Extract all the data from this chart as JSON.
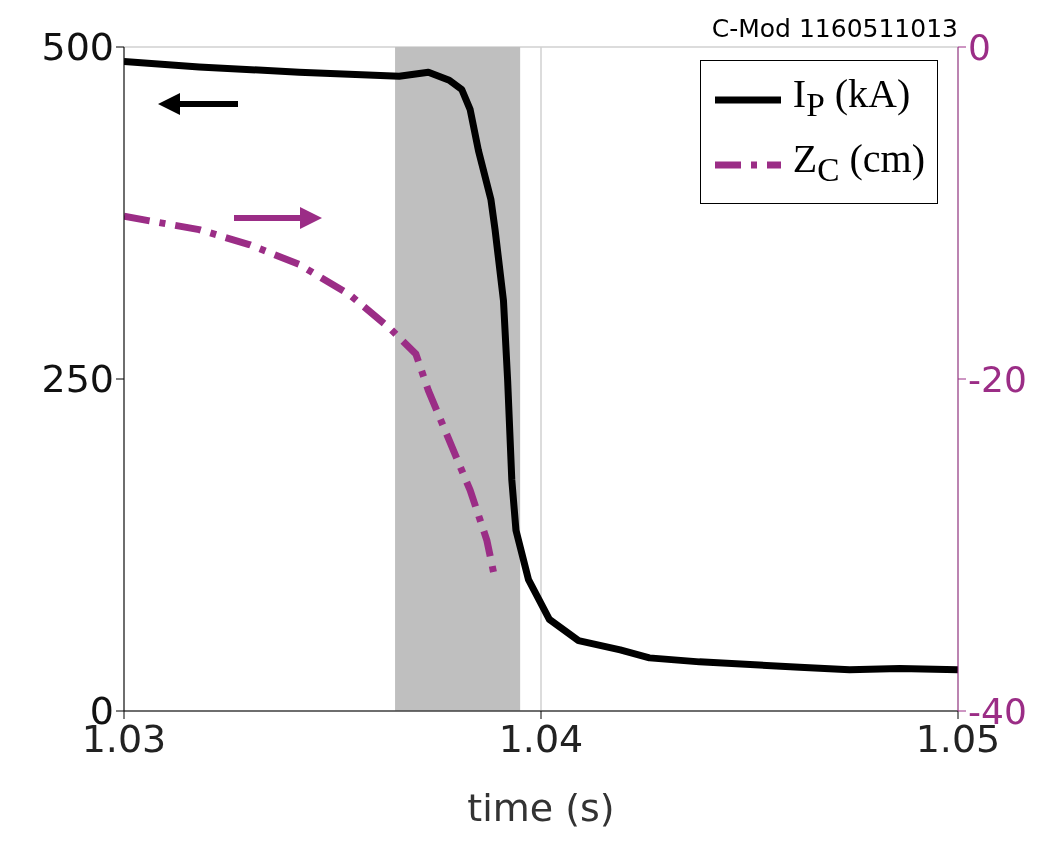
{
  "chart_data": {
    "type": "line",
    "title": "C-Mod 1160511013",
    "xlabel": "time (s)",
    "xlim": [
      1.03,
      1.05
    ],
    "xticks": [
      1.03,
      1.04,
      1.05
    ],
    "ylim": [
      0,
      500
    ],
    "yticks": [
      0,
      250,
      500
    ],
    "y2lim": [
      -40,
      0
    ],
    "y2ticks": [
      -40,
      -20,
      0
    ],
    "grid": true,
    "legend": "top right",
    "marker": "none",
    "bands": [
      {
        "axis": "x",
        "from": 1.0365,
        "to": 1.0395,
        "color": "#bfbfbf"
      }
    ],
    "series": [
      {
        "name": "I$_{P}$ (kA)",
        "color": "#000000",
        "line_style": "solid",
        "x": [
          1.03,
          1.0318,
          1.0342,
          1.0366,
          1.0373,
          1.0378,
          1.0381,
          1.0383,
          1.0385,
          1.0388,
          1.0389,
          1.0391,
          1.0392,
          1.0393,
          1.0394,
          1.0397,
          1.0402,
          1.0409,
          1.0419,
          1.0426,
          1.0438,
          1.0462,
          1.0474,
          1.0486,
          1.05
        ],
        "values": [
          489,
          485,
          481,
          478,
          481,
          475,
          468,
          453,
          422,
          385,
          362,
          309,
          249,
          174,
          136,
          99,
          69,
          53,
          46,
          40,
          37,
          33,
          31,
          32,
          31
        ]
      },
      {
        "name": "Z$_{C}$ (cm)",
        "color": "#9b2d86",
        "line_style": "dashed",
        "axis": "y2",
        "x": [
          1.03,
          1.0318,
          1.033,
          1.0342,
          1.0354,
          1.0364,
          1.037,
          1.0373,
          1.0378,
          1.0383,
          1.0387,
          1.0389
        ],
        "values": [
          -10.2,
          -11.0,
          -11.9,
          -13.1,
          -14.9,
          -17.0,
          -18.5,
          -20.7,
          -23.7,
          -26.7,
          -29.7,
          -32.1
        ]
      }
    ]
  }
}
